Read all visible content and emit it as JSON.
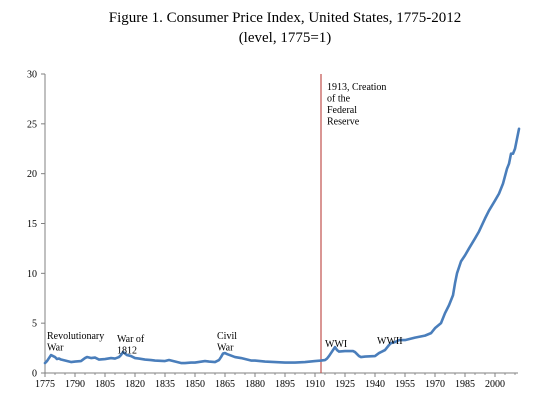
{
  "chart_data": {
    "type": "line",
    "title": "Figure 1. Consumer Price Index, United States, 1775-2012",
    "subtitle": "(level, 1775=1)",
    "xlabel": "",
    "ylabel": "",
    "xlim": [
      1775,
      2012
    ],
    "ylim": [
      0,
      30
    ],
    "grid": false,
    "legend": "none",
    "x_ticks": [
      "1775",
      "1790",
      "1805",
      "1820",
      "1835",
      "1850",
      "1865",
      "1880",
      "1895",
      "1910",
      "1925",
      "1940",
      "1955",
      "1970",
      "1985",
      "2000"
    ],
    "y_ticks": [
      "0",
      "5",
      "10",
      "15",
      "20",
      "25",
      "30"
    ],
    "series": [
      {
        "color": "#4a7ebb",
        "x": [
          1775,
          1776,
          1777,
          1778,
          1779,
          1780,
          1781,
          1782,
          1783,
          1785,
          1788,
          1790,
          1793,
          1795,
          1796,
          1798,
          1800,
          1802,
          1805,
          1808,
          1810,
          1812,
          1813,
          1814,
          1815,
          1816,
          1818,
          1820,
          1822,
          1825,
          1828,
          1830,
          1835,
          1837,
          1840,
          1843,
          1845,
          1848,
          1850,
          1855,
          1857,
          1860,
          1862,
          1863,
          1864,
          1865,
          1866,
          1868,
          1870,
          1873,
          1875,
          1878,
          1880,
          1885,
          1890,
          1895,
          1900,
          1905,
          1910,
          1913,
          1915,
          1916,
          1917,
          1918,
          1919,
          1920,
          1921,
          1922,
          1925,
          1929,
          1930,
          1931,
          1932,
          1933,
          1935,
          1940,
          1942,
          1944,
          1945,
          1947,
          1948,
          1950,
          1952,
          1955,
          1960,
          1965,
          1968,
          1970,
          1973,
          1975,
          1977,
          1979,
          1980,
          1981,
          1983,
          1985,
          1987,
          1990,
          1992,
          1995,
          1997,
          2000,
          2002,
          2004,
          2006,
          2007,
          2008,
          2009,
          2010,
          2011,
          2012
        ],
        "y": [
          1.0,
          1.2,
          1.5,
          1.8,
          1.7,
          1.6,
          1.4,
          1.45,
          1.35,
          1.25,
          1.1,
          1.15,
          1.2,
          1.5,
          1.6,
          1.5,
          1.55,
          1.35,
          1.4,
          1.5,
          1.45,
          1.6,
          1.8,
          2.1,
          1.95,
          1.8,
          1.7,
          1.5,
          1.45,
          1.35,
          1.3,
          1.25,
          1.2,
          1.3,
          1.15,
          1.0,
          1.0,
          1.05,
          1.05,
          1.2,
          1.15,
          1.1,
          1.3,
          1.6,
          1.95,
          2.0,
          1.9,
          1.75,
          1.6,
          1.5,
          1.4,
          1.25,
          1.25,
          1.15,
          1.1,
          1.05,
          1.05,
          1.1,
          1.2,
          1.25,
          1.3,
          1.45,
          1.7,
          2.0,
          2.3,
          2.6,
          2.3,
          2.15,
          2.2,
          2.2,
          2.1,
          1.9,
          1.7,
          1.6,
          1.65,
          1.7,
          2.0,
          2.2,
          2.3,
          2.8,
          3.0,
          3.1,
          3.3,
          3.3,
          3.55,
          3.75,
          4.0,
          4.5,
          5.0,
          6.0,
          6.8,
          7.8,
          9.0,
          10.0,
          11.2,
          11.8,
          12.5,
          13.5,
          14.2,
          15.5,
          16.3,
          17.3,
          18.0,
          19.0,
          20.5,
          21.0,
          22.0,
          22.0,
          22.5,
          23.5,
          24.5
        ]
      }
    ],
    "reference_line": {
      "x": 1913,
      "color": "#c0504d",
      "label_lines": [
        "1913, Creation",
        "of the",
        "Federal",
        "Reserve"
      ]
    },
    "annotations": [
      {
        "lines": [
          "Revolutionary",
          "War"
        ],
        "x": 1775,
        "y": 4.0
      },
      {
        "lines": [
          "War of",
          "1812"
        ],
        "x": 1810,
        "y": 3.7
      },
      {
        "lines": [
          "Civil",
          "War"
        ],
        "x": 1860,
        "y": 4.0
      },
      {
        "lines": [
          "WWI"
        ],
        "x": 1914,
        "y": 3.2
      },
      {
        "lines": [
          "WWII"
        ],
        "x": 1940,
        "y": 3.5
      }
    ]
  }
}
